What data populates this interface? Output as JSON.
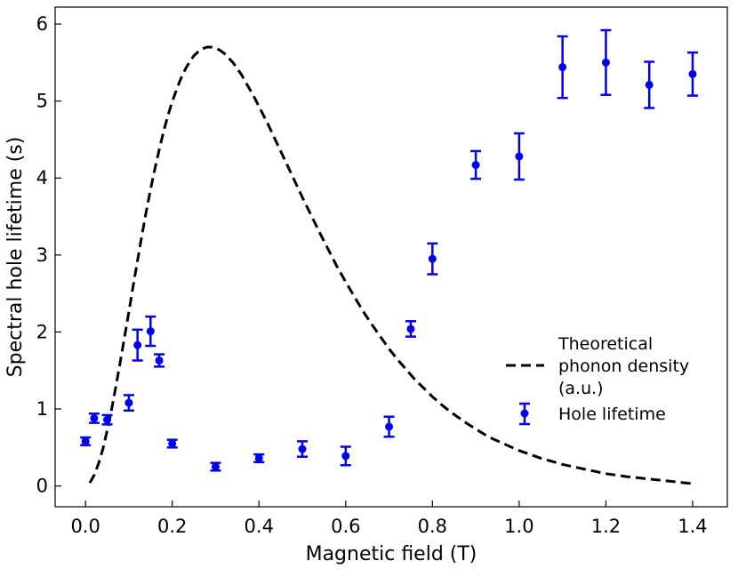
{
  "chart_data": {
    "type": "scatter",
    "title": "",
    "xlabel": "Magnetic field (T)",
    "ylabel": "Spectral hole lifetime (s)",
    "xlim": [
      -0.07,
      1.48
    ],
    "ylim": [
      -0.27,
      6.22
    ],
    "xticks": [
      0.0,
      0.2,
      0.4,
      0.6,
      0.8,
      1.0,
      1.2,
      1.4
    ],
    "xtick_labels": [
      "0.0",
      "0.2",
      "0.4",
      "0.6",
      "0.8",
      "1.0",
      "1.2",
      "1.4"
    ],
    "yticks": [
      0,
      1,
      2,
      3,
      4,
      5,
      6
    ],
    "ytick_labels": [
      "0",
      "1",
      "2",
      "3",
      "4",
      "5",
      "6"
    ],
    "grid": false,
    "legend_position": "center-right",
    "series": [
      {
        "name": "Hole lifetime",
        "kind": "errorbar",
        "color": "#0000ee",
        "x": [
          0.0,
          0.02,
          0.05,
          0.1,
          0.12,
          0.15,
          0.17,
          0.2,
          0.3,
          0.4,
          0.5,
          0.6,
          0.7,
          0.75,
          0.8,
          0.9,
          1.0,
          1.1,
          1.2,
          1.3,
          1.4
        ],
        "y": [
          0.58,
          0.88,
          0.86,
          1.08,
          1.83,
          2.01,
          1.63,
          0.55,
          0.25,
          0.36,
          0.48,
          0.39,
          0.77,
          2.04,
          2.95,
          4.17,
          4.28,
          5.44,
          5.5,
          5.21,
          5.35
        ],
        "yerr": [
          0.05,
          0.06,
          0.06,
          0.1,
          0.2,
          0.19,
          0.08,
          0.05,
          0.05,
          0.05,
          0.1,
          0.12,
          0.13,
          0.1,
          0.2,
          0.18,
          0.3,
          0.4,
          0.42,
          0.3,
          0.28
        ]
      },
      {
        "name": "Theoretical phonon density (a.u.)",
        "kind": "line",
        "style": "dashed",
        "color": "#000000",
        "x": [
          0.01,
          0.02,
          0.03,
          0.04,
          0.05,
          0.06,
          0.07,
          0.08,
          0.09,
          0.1,
          0.11,
          0.12,
          0.13,
          0.14,
          0.15,
          0.16,
          0.17,
          0.18,
          0.19,
          0.2,
          0.21,
          0.22,
          0.23,
          0.24,
          0.25,
          0.26,
          0.27,
          0.28,
          0.29,
          0.3,
          0.31,
          0.32,
          0.33,
          0.34,
          0.35,
          0.36,
          0.37,
          0.38,
          0.39,
          0.4,
          0.42,
          0.44,
          0.46,
          0.48,
          0.5,
          0.52,
          0.54,
          0.56,
          0.58,
          0.6,
          0.62,
          0.64,
          0.66,
          0.68,
          0.7,
          0.72,
          0.74,
          0.76,
          0.78,
          0.8,
          0.82,
          0.84,
          0.86,
          0.88,
          0.9,
          0.92,
          0.94,
          0.96,
          0.98,
          1.0,
          1.05,
          1.1,
          1.15,
          1.2,
          1.25,
          1.3,
          1.35,
          1.4
        ],
        "y": [
          0.04,
          0.14,
          0.29,
          0.48,
          0.72,
          0.99,
          1.29,
          1.61,
          1.93,
          2.26,
          2.6,
          2.93,
          3.25,
          3.56,
          3.85,
          4.12,
          4.37,
          4.6,
          4.81,
          4.99,
          5.15,
          5.29,
          5.41,
          5.51,
          5.59,
          5.64,
          5.68,
          5.7,
          5.7,
          5.69,
          5.66,
          5.62,
          5.56,
          5.5,
          5.42,
          5.34,
          5.24,
          5.14,
          5.04,
          4.93,
          4.71,
          4.47,
          4.23,
          3.99,
          3.75,
          3.52,
          3.29,
          3.07,
          2.85,
          2.65,
          2.46,
          2.27,
          2.1,
          1.94,
          1.78,
          1.64,
          1.51,
          1.38,
          1.27,
          1.16,
          1.06,
          0.97,
          0.89,
          0.81,
          0.74,
          0.67,
          0.61,
          0.56,
          0.51,
          0.46,
          0.36,
          0.28,
          0.22,
          0.16,
          0.12,
          0.09,
          0.06,
          0.03
        ]
      }
    ],
    "legend": [
      {
        "label_lines": [
          "Theoretical",
          "phonon density",
          "(a.u.)"
        ],
        "kind": "dashed-line"
      },
      {
        "label_lines": [
          "Hole lifetime"
        ],
        "kind": "errorbar-marker"
      }
    ]
  }
}
